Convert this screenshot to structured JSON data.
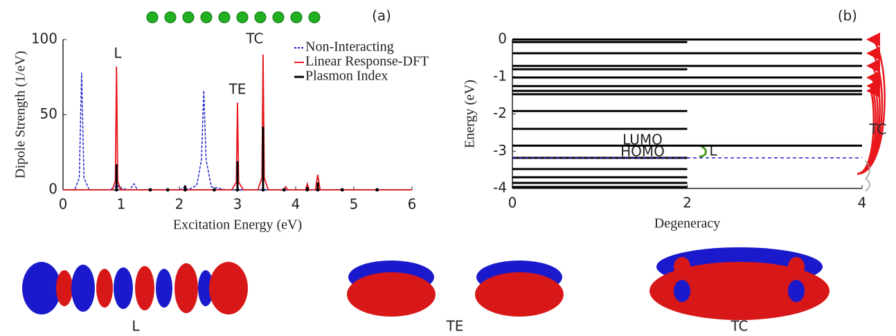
{
  "chart_data": [
    {
      "type": "line",
      "panel_label": "(a)",
      "x_label": "Excitation Energy (eV)",
      "y_label": "Dipole Strength (1/eV)",
      "xlim": [
        0,
        6
      ],
      "ylim": [
        0,
        100
      ],
      "xticks": [
        0,
        1,
        2,
        3,
        4,
        5,
        6
      ],
      "yticks": [
        0,
        50,
        100
      ],
      "legend": "upper right",
      "annotations": [
        "L",
        "TE",
        "TC"
      ],
      "series": [
        {
          "name": "Non-Interacting",
          "color": "#2222cc",
          "style": "dashed",
          "x": [
            0,
            0.2,
            0.28,
            0.32,
            0.36,
            0.45,
            0.8,
            0.9,
            0.93,
            0.96,
            1.15,
            1.22,
            1.28,
            2.0,
            2.1,
            2.15,
            2.3,
            2.38,
            2.42,
            2.46,
            2.55,
            2.8,
            6
          ],
          "values": [
            0,
            0,
            8,
            78,
            8,
            0,
            0,
            2,
            5,
            1,
            0,
            4,
            0,
            0,
            2,
            0,
            3,
            20,
            66,
            20,
            2,
            0,
            0
          ]
        },
        {
          "name": "Linear Response-DFT",
          "color": "#e8161b",
          "style": "solid",
          "x": [
            0,
            0.85,
            0.9,
            0.92,
            0.94,
            0.99,
            2.9,
            2.98,
            3.0,
            3.02,
            3.1,
            3.35,
            3.42,
            3.44,
            3.46,
            3.53,
            3.8,
            3.83,
            3.86,
            4.17,
            4.2,
            4.23,
            4.34,
            4.38,
            4.42,
            5.5,
            6
          ],
          "values": [
            0,
            0,
            6,
            82,
            6,
            0,
            0,
            5,
            58,
            5,
            0,
            0,
            8,
            90,
            8,
            0,
            0,
            2,
            0,
            0,
            4,
            0,
            0,
            10,
            0,
            0,
            0
          ]
        },
        {
          "name": "Plasmon Index",
          "color": "#000000",
          "style": "stem",
          "x": [
            0.92,
            1.5,
            1.8,
            2.1,
            2.6,
            3.0,
            3.44,
            3.8,
            4.2,
            4.38,
            4.8,
            5.4
          ],
          "values": [
            17,
            0.5,
            0.5,
            3,
            0.5,
            19,
            42,
            1,
            2,
            5,
            0.5,
            1
          ]
        }
      ]
    },
    {
      "type": "levels",
      "panel_label": "(b)",
      "x_label": "Degeneracy",
      "y_label": "Energy (eV)",
      "xlim": [
        0,
        4
      ],
      "ylim": [
        -4,
        0
      ],
      "xticks": [
        0,
        2,
        4
      ],
      "yticks": [
        -4,
        -3,
        -2,
        -1,
        0
      ],
      "energies": [
        0,
        -0.07,
        -0.37,
        -0.71,
        -0.8,
        -1.02,
        -1.25,
        -1.38,
        -1.47,
        -1.92,
        -2.4,
        -2.85,
        -3.18,
        -3.48,
        -3.7,
        -3.85,
        -3.96
      ],
      "values": [
        4,
        2,
        4,
        4,
        2,
        4,
        4,
        4,
        4,
        2,
        2,
        4,
        2,
        2,
        2,
        2,
        2
      ],
      "dashed_level": -3.18,
      "dashed_color": "#2222cc",
      "annotations": [
        "LUMO",
        "HOMO",
        "L",
        "TC"
      ]
    }
  ],
  "orbital_labels": [
    "L",
    "TE",
    "TC"
  ]
}
